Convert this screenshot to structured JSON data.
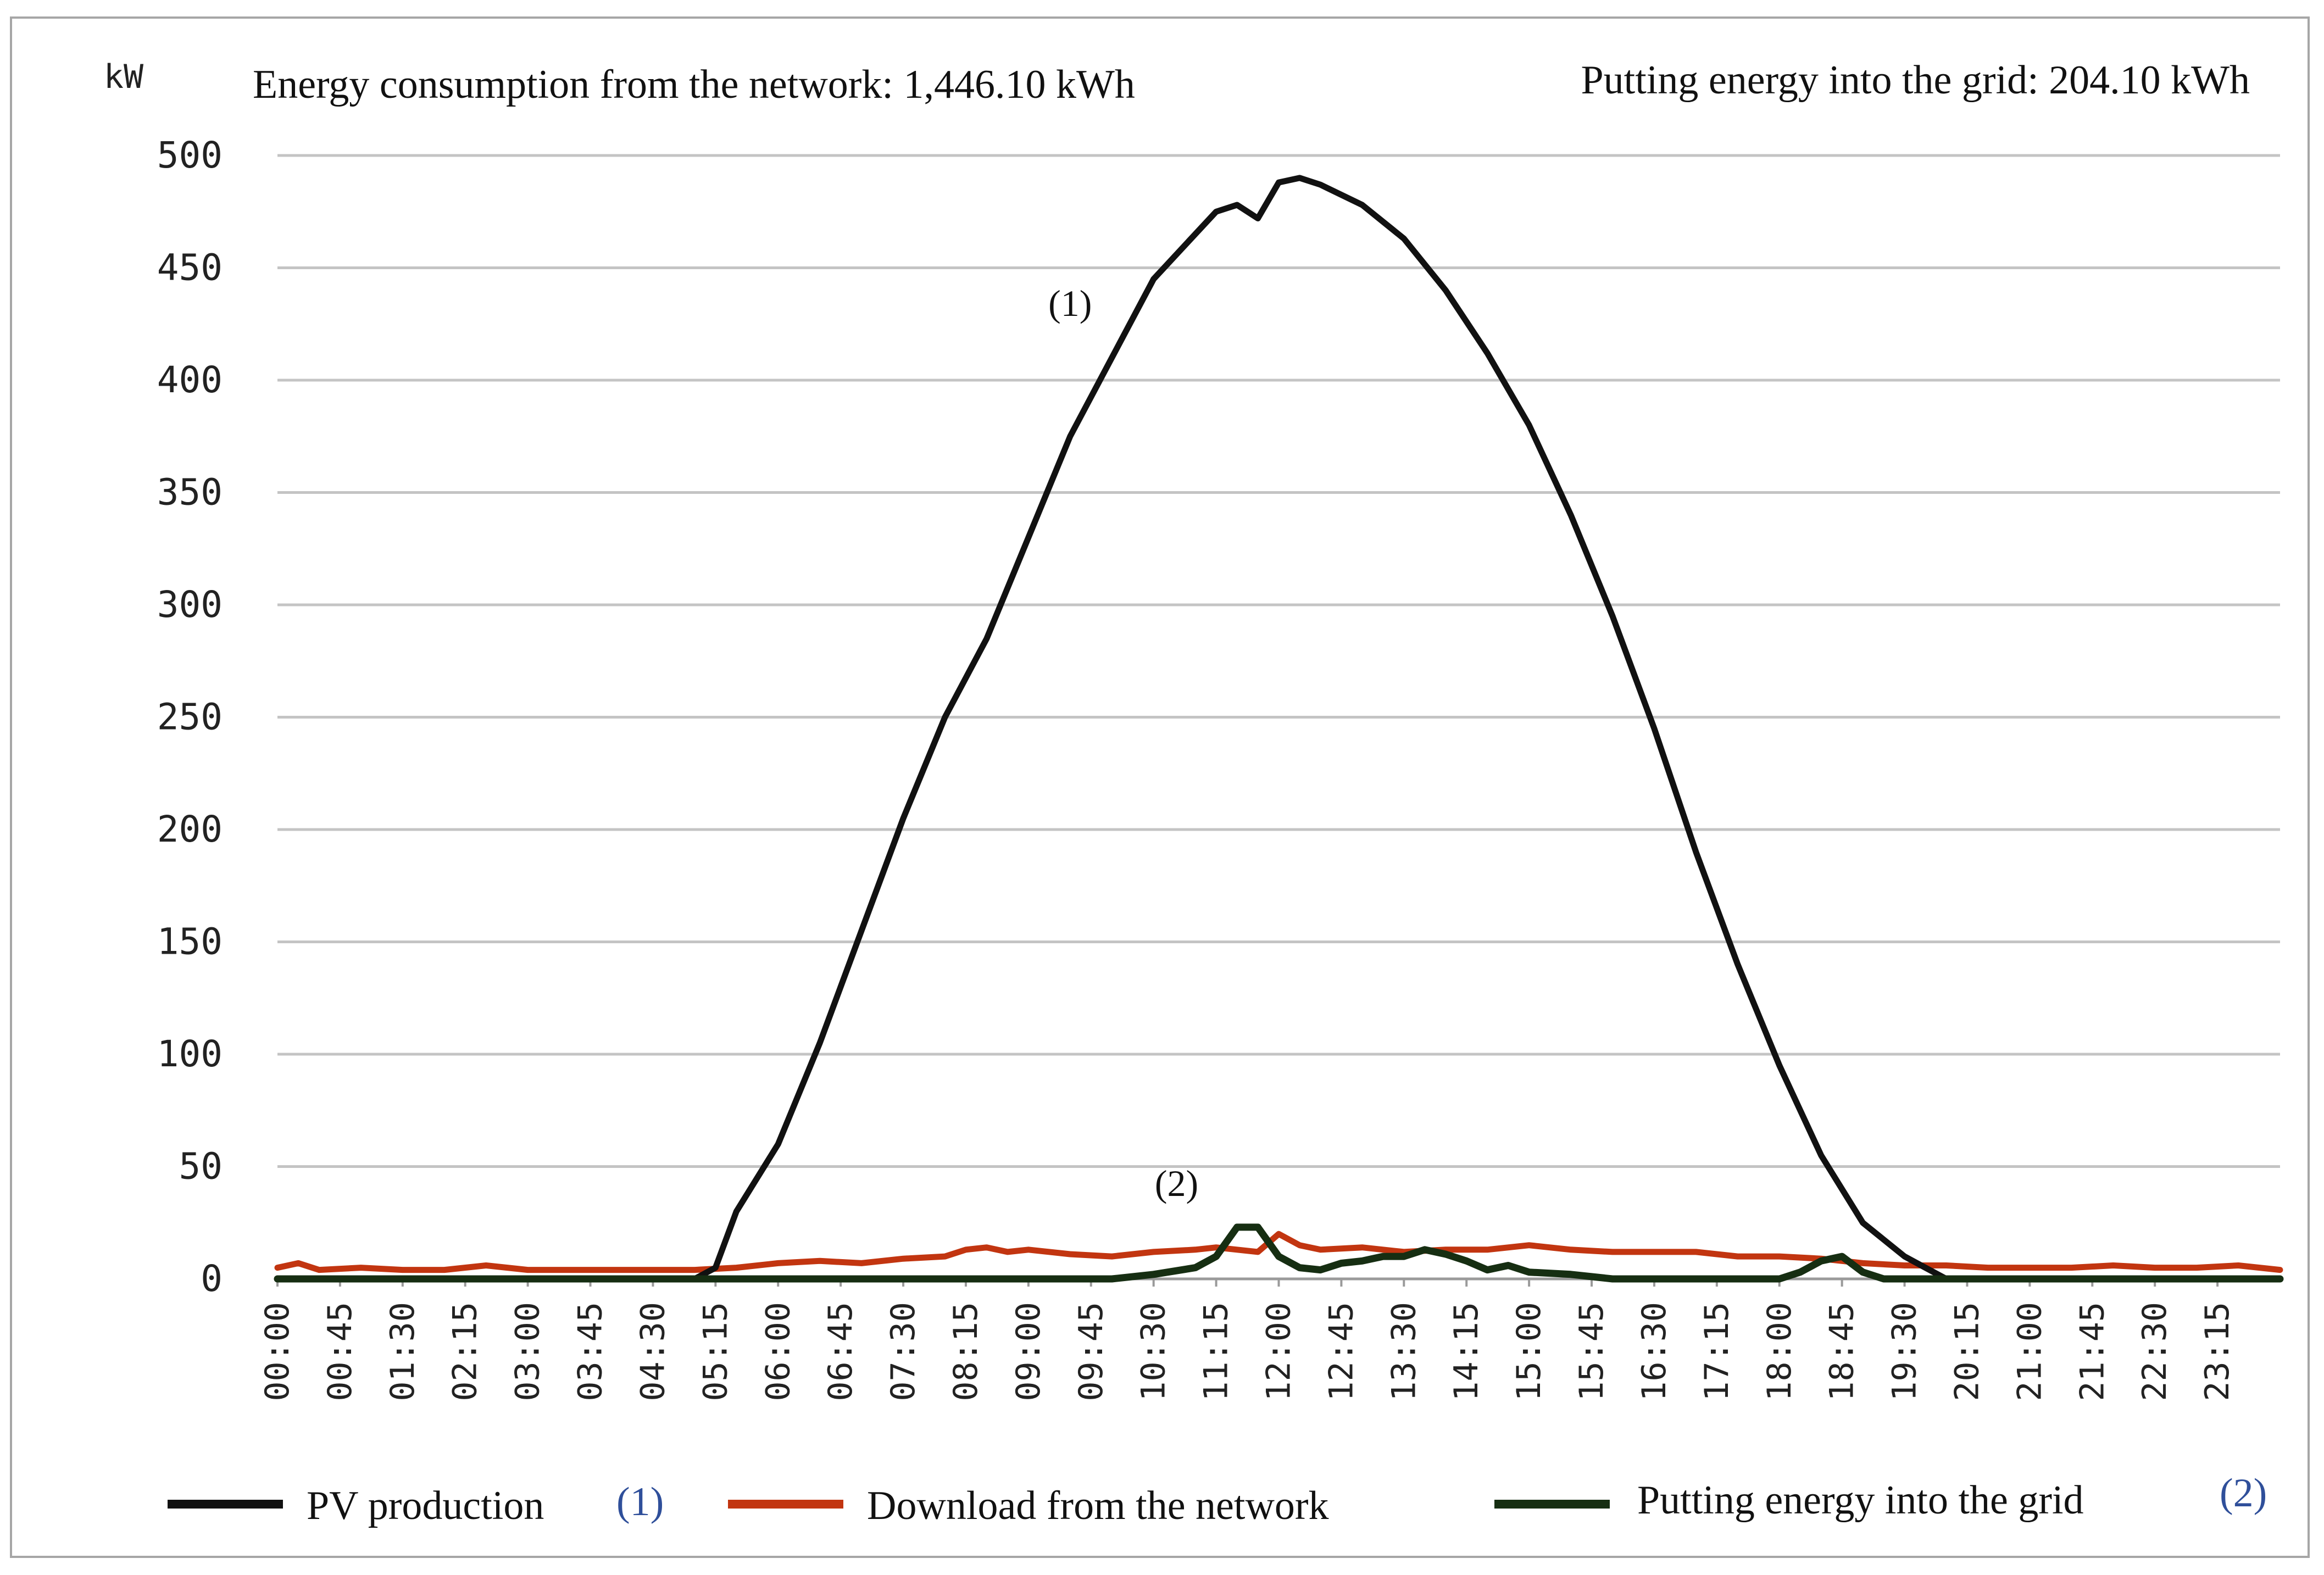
{
  "chart_data": {
    "type": "line",
    "title_left": "Energy consumption from the network: 1,446.10 kWh",
    "title_right": "Putting energy into the grid: 204.10 kWh",
    "ylabel": "kW",
    "xlabel": "",
    "ylim": [
      0,
      500
    ],
    "yticks": [
      0,
      50,
      100,
      150,
      200,
      250,
      300,
      350,
      400,
      450,
      500
    ],
    "grid": true,
    "x_labels": [
      "00:00",
      "00:45",
      "01:30",
      "02:15",
      "03:00",
      "03:45",
      "04:30",
      "05:15",
      "06:00",
      "06:45",
      "07:30",
      "08:15",
      "09:00",
      "09:45",
      "10:30",
      "11:15",
      "12:00",
      "12:45",
      "13:30",
      "14:15",
      "15:00",
      "15:45",
      "16:30",
      "17:15",
      "18:00",
      "18:45",
      "19:30",
      "20:15",
      "21:00",
      "21:45",
      "22:30",
      "23:15"
    ],
    "series": [
      {
        "name": "PV production",
        "marker": "(1)",
        "color": "#111111",
        "points": [
          [
            0,
            0
          ],
          [
            5.0,
            0
          ],
          [
            5.25,
            5
          ],
          [
            5.5,
            30
          ],
          [
            6.0,
            60
          ],
          [
            6.5,
            105
          ],
          [
            7.0,
            155
          ],
          [
            7.5,
            205
          ],
          [
            8.0,
            250
          ],
          [
            8.5,
            285
          ],
          [
            9.0,
            330
          ],
          [
            9.5,
            375
          ],
          [
            10.0,
            410
          ],
          [
            10.5,
            445
          ],
          [
            11.0,
            465
          ],
          [
            11.25,
            475
          ],
          [
            11.5,
            478
          ],
          [
            11.75,
            472
          ],
          [
            12.0,
            488
          ],
          [
            12.25,
            490
          ],
          [
            12.5,
            487
          ],
          [
            13.0,
            478
          ],
          [
            13.5,
            463
          ],
          [
            14.0,
            440
          ],
          [
            14.5,
            412
          ],
          [
            15.0,
            380
          ],
          [
            15.5,
            340
          ],
          [
            16.0,
            295
          ],
          [
            16.5,
            245
          ],
          [
            17.0,
            190
          ],
          [
            17.5,
            140
          ],
          [
            18.0,
            95
          ],
          [
            18.5,
            55
          ],
          [
            19.0,
            25
          ],
          [
            19.5,
            10
          ],
          [
            19.75,
            5
          ],
          [
            20.0,
            0
          ],
          [
            24.0,
            0
          ]
        ]
      },
      {
        "name": "Download from the network",
        "color": "#c23510",
        "points": [
          [
            0,
            5
          ],
          [
            0.25,
            7
          ],
          [
            0.5,
            4
          ],
          [
            1,
            5
          ],
          [
            1.5,
            4
          ],
          [
            2,
            4
          ],
          [
            2.5,
            6
          ],
          [
            3,
            4
          ],
          [
            3.5,
            4
          ],
          [
            4,
            4
          ],
          [
            4.5,
            4
          ],
          [
            5,
            4
          ],
          [
            5.5,
            5
          ],
          [
            6,
            7
          ],
          [
            6.5,
            8
          ],
          [
            7,
            7
          ],
          [
            7.5,
            9
          ],
          [
            8,
            10
          ],
          [
            8.25,
            13
          ],
          [
            8.5,
            14
          ],
          [
            8.75,
            12
          ],
          [
            9,
            13
          ],
          [
            9.5,
            11
          ],
          [
            10,
            10
          ],
          [
            10.5,
            12
          ],
          [
            11,
            13
          ],
          [
            11.25,
            14
          ],
          [
            11.5,
            13
          ],
          [
            11.75,
            12
          ],
          [
            12,
            20
          ],
          [
            12.25,
            15
          ],
          [
            12.5,
            13
          ],
          [
            13,
            14
          ],
          [
            13.5,
            12
          ],
          [
            14,
            13
          ],
          [
            14.5,
            13
          ],
          [
            15,
            15
          ],
          [
            15.5,
            13
          ],
          [
            16,
            12
          ],
          [
            16.5,
            12
          ],
          [
            17,
            12
          ],
          [
            17.5,
            10
          ],
          [
            18,
            10
          ],
          [
            18.5,
            9
          ],
          [
            19,
            7
          ],
          [
            19.5,
            6
          ],
          [
            20,
            6
          ],
          [
            20.5,
            5
          ],
          [
            21,
            5
          ],
          [
            21.5,
            5
          ],
          [
            22,
            6
          ],
          [
            22.5,
            5
          ],
          [
            23,
            5
          ],
          [
            23.5,
            6
          ],
          [
            24,
            4
          ]
        ]
      },
      {
        "name": "Putting energy into the grid",
        "marker": "(2)",
        "color": "#162e12",
        "points": [
          [
            0,
            0
          ],
          [
            10.0,
            0
          ],
          [
            10.5,
            2
          ],
          [
            11.0,
            5
          ],
          [
            11.25,
            10
          ],
          [
            11.5,
            23
          ],
          [
            11.75,
            23
          ],
          [
            12.0,
            10
          ],
          [
            12.25,
            5
          ],
          [
            12.5,
            4
          ],
          [
            12.75,
            7
          ],
          [
            13.0,
            8
          ],
          [
            13.25,
            10
          ],
          [
            13.5,
            10
          ],
          [
            13.75,
            13
          ],
          [
            14.0,
            11
          ],
          [
            14.25,
            8
          ],
          [
            14.5,
            4
          ],
          [
            14.75,
            6
          ],
          [
            15.0,
            3
          ],
          [
            15.5,
            2
          ],
          [
            16.0,
            0
          ],
          [
            18.0,
            0
          ],
          [
            18.25,
            3
          ],
          [
            18.5,
            8
          ],
          [
            18.75,
            10
          ],
          [
            19.0,
            3
          ],
          [
            19.25,
            0
          ],
          [
            24.0,
            0
          ]
        ]
      }
    ],
    "legend": {
      "position": "bottom",
      "entries": [
        {
          "label": "PV production",
          "suffix": "(1)",
          "color": "#111111"
        },
        {
          "label": "Download from the network",
          "suffix": "",
          "color": "#c23510"
        },
        {
          "label": "Putting energy into the grid",
          "suffix": "(2)",
          "color": "#162e12"
        }
      ]
    },
    "annotations": [
      {
        "text": "(1)",
        "x": 9.5,
        "y": 425
      },
      {
        "text": "(2)",
        "x": 11.5,
        "y": 32
      }
    ]
  }
}
